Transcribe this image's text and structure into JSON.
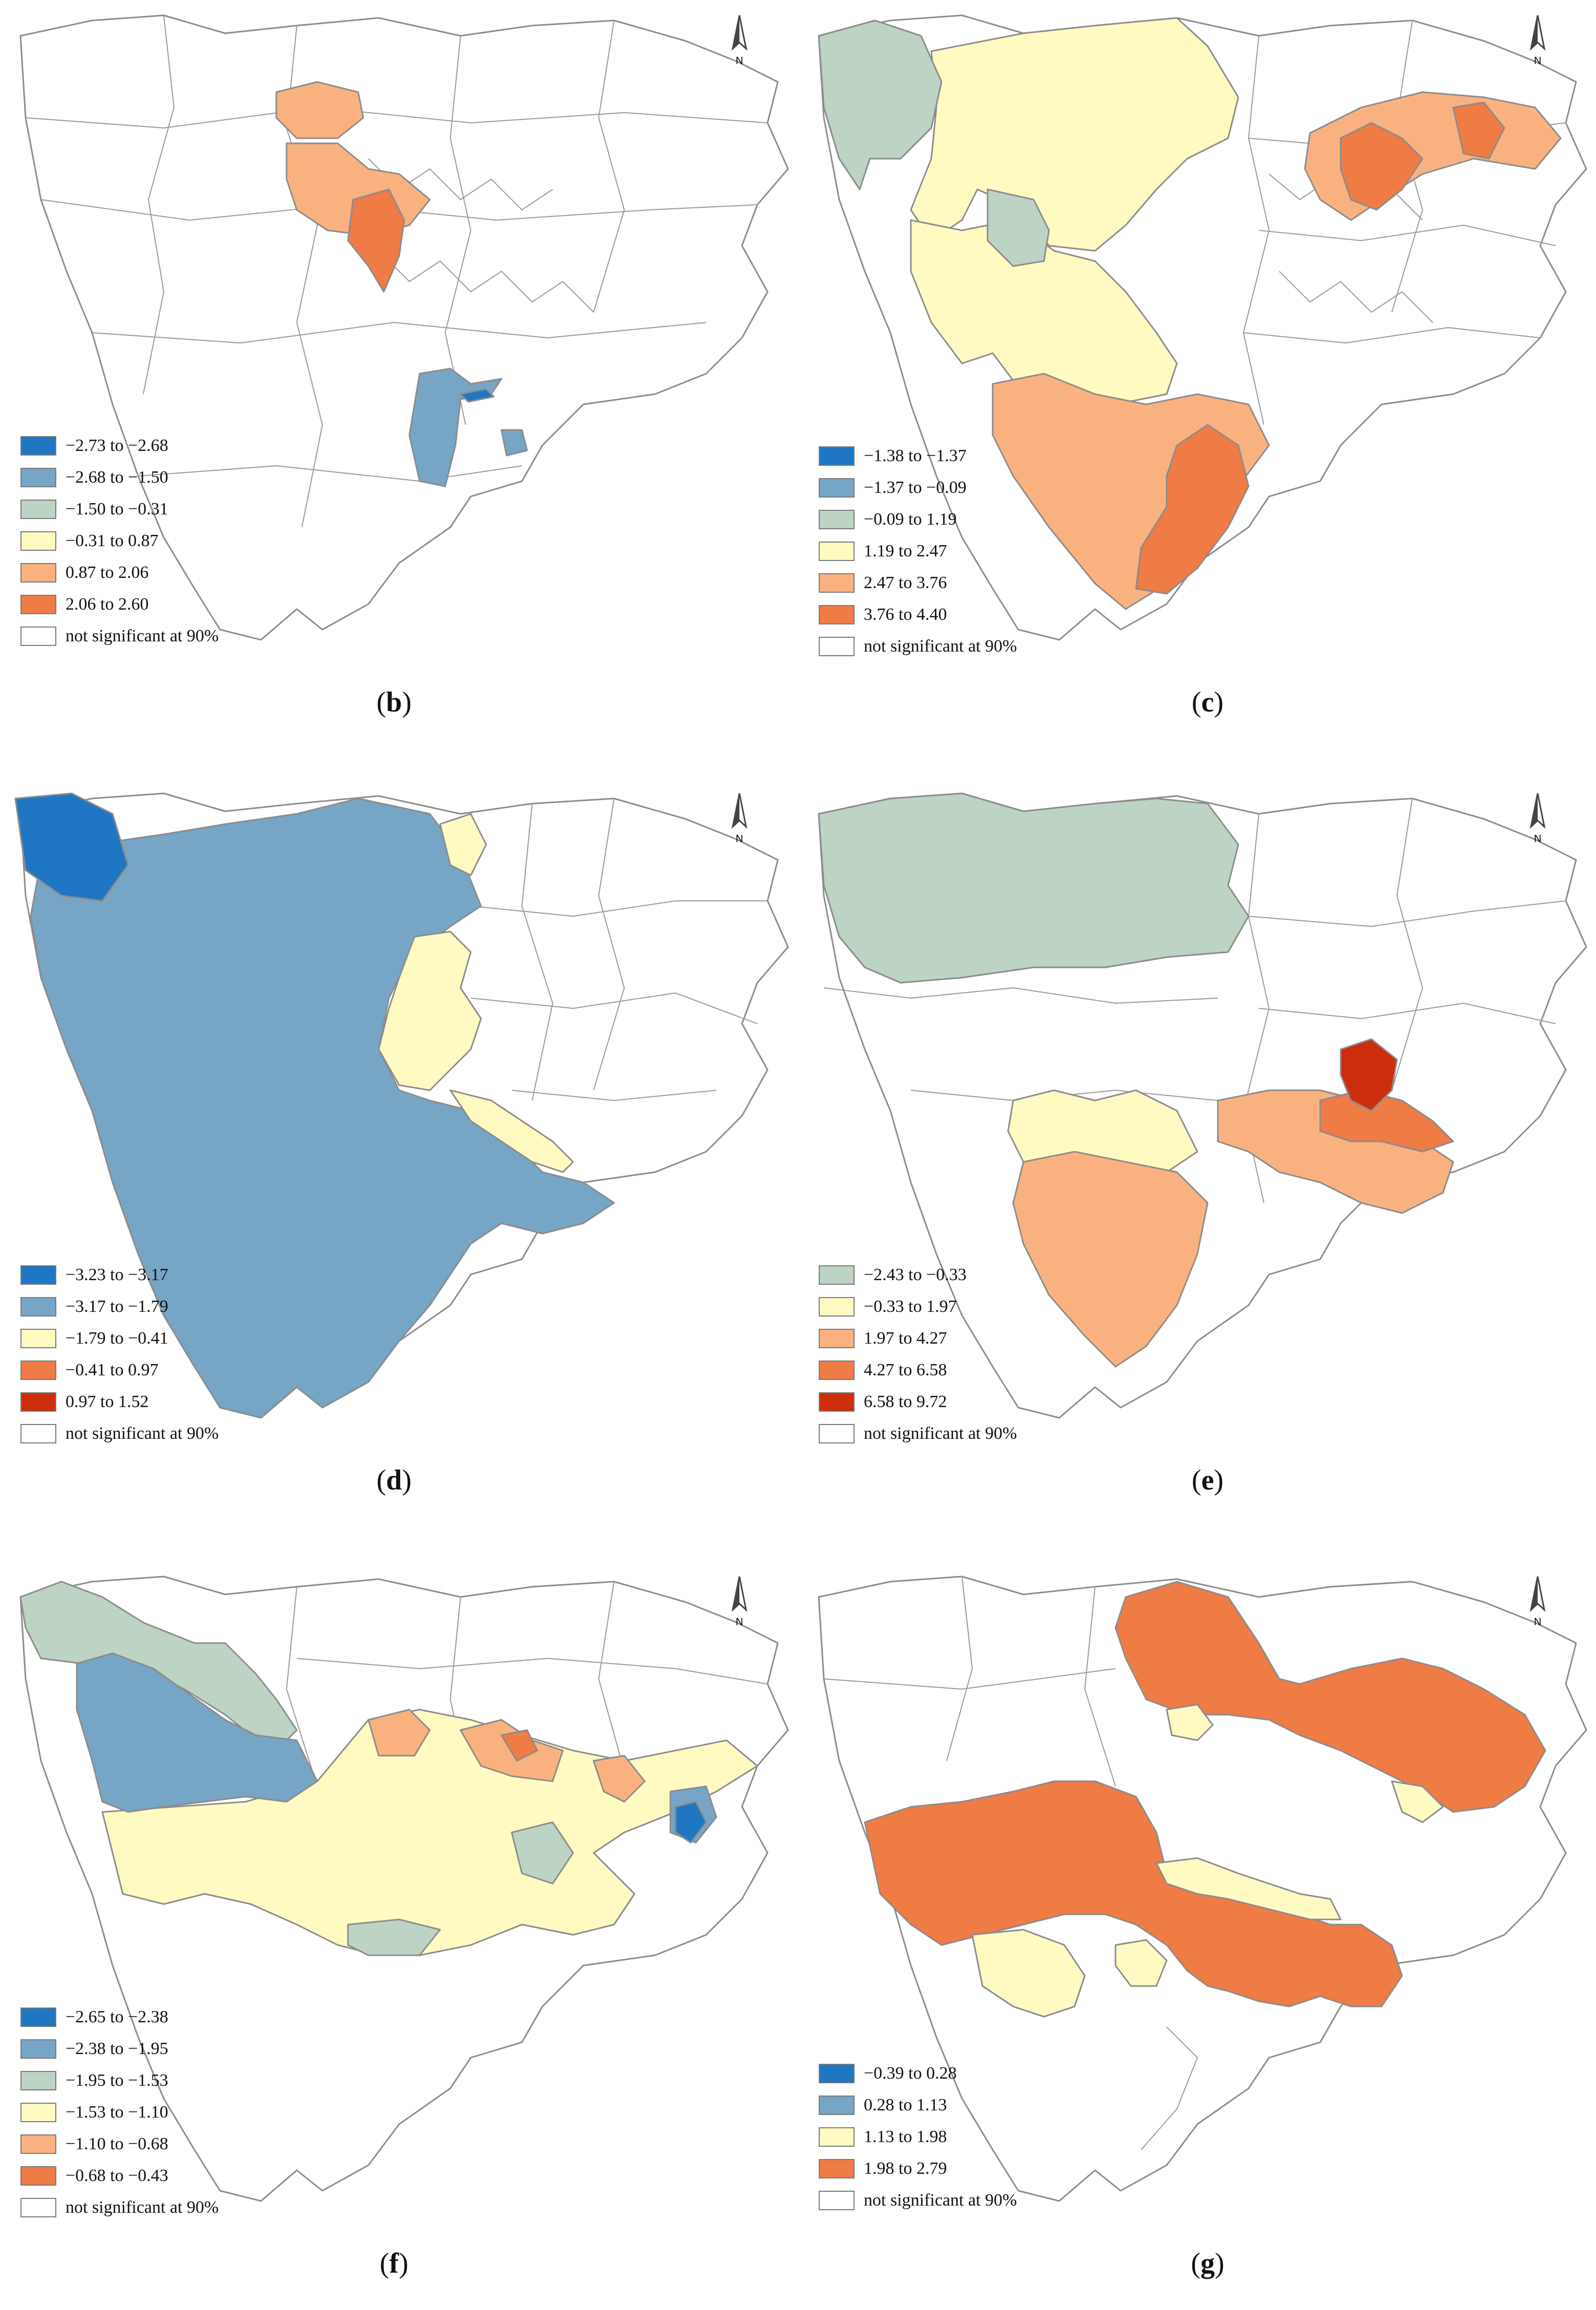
{
  "north_symbol": "N",
  "palette": {
    "deep_blue": "#1f77c4",
    "steel_blue": "#76a5c6",
    "sage": "#bdd3c4",
    "cream": "#fffac2",
    "peach": "#f9b27f",
    "orange": "#ef7b45",
    "red": "#cc2e0d",
    "white": "#ffffff"
  },
  "panels": [
    {
      "label": "b",
      "legend": [
        {
          "text": "−2.73 to −2.68",
          "color": "#1f77c4"
        },
        {
          "text": "−2.68 to −1.50",
          "color": "#76a5c6"
        },
        {
          "text": "−1.50 to −0.31",
          "color": "#bdd3c4"
        },
        {
          "text": "−0.31 to 0.87",
          "color": "#fffac2"
        },
        {
          "text": "0.87 to 2.06",
          "color": "#f9b27f"
        },
        {
          "text": "2.06 to 2.60",
          "color": "#ef7b45"
        },
        {
          "text": "not significant at 90%",
          "color": "#ffffff"
        }
      ]
    },
    {
      "label": "c",
      "legend": [
        {
          "text": "−1.38 to −1.37",
          "color": "#1f77c4"
        },
        {
          "text": "−1.37 to −0.09",
          "color": "#76a5c6"
        },
        {
          "text": "−0.09 to 1.19",
          "color": "#bdd3c4"
        },
        {
          "text": "1.19 to 2.47",
          "color": "#fffac2"
        },
        {
          "text": "2.47 to 3.76",
          "color": "#f9b27f"
        },
        {
          "text": "3.76 to 4.40",
          "color": "#ef7b45"
        },
        {
          "text": "not significant at 90%",
          "color": "#ffffff"
        }
      ]
    },
    {
      "label": "d",
      "legend": [
        {
          "text": "−3.23 to −3.17",
          "color": "#1f77c4"
        },
        {
          "text": "−3.17 to −1.79",
          "color": "#76a5c6"
        },
        {
          "text": "−1.79 to −0.41",
          "color": "#fffac2"
        },
        {
          "text": "−0.41 to 0.97",
          "color": "#ef7b45"
        },
        {
          "text": "0.97 to 1.52",
          "color": "#cc2e0d"
        },
        {
          "text": "not significant at 90%",
          "color": "#ffffff"
        }
      ]
    },
    {
      "label": "e",
      "legend": [
        {
          "text": "−2.43 to −0.33",
          "color": "#bdd3c4"
        },
        {
          "text": "−0.33 to 1.97",
          "color": "#fffac2"
        },
        {
          "text": "1.97 to 4.27",
          "color": "#f9b27f"
        },
        {
          "text": "4.27 to 6.58",
          "color": "#ef7b45"
        },
        {
          "text": "6.58 to 9.72",
          "color": "#cc2e0d"
        },
        {
          "text": "not significant at 90%",
          "color": "#ffffff"
        }
      ]
    },
    {
      "label": "f",
      "legend": [
        {
          "text": "−2.65 to −2.38",
          "color": "#1f77c4"
        },
        {
          "text": "−2.38 to −1.95",
          "color": "#76a5c6"
        },
        {
          "text": "−1.95 to −1.53",
          "color": "#bdd3c4"
        },
        {
          "text": "−1.53 to −1.10",
          "color": "#fffac2"
        },
        {
          "text": "−1.10 to −0.68",
          "color": "#f9b27f"
        },
        {
          "text": "−0.68 to −0.43",
          "color": "#ef7b45"
        },
        {
          "text": "not significant at 90%",
          "color": "#ffffff"
        }
      ]
    },
    {
      "label": "g",
      "legend": [
        {
          "text": "−0.39 to 0.28",
          "color": "#1f77c4"
        },
        {
          "text": "0.28 to 1.13",
          "color": "#76a5c6"
        },
        {
          "text": "1.13 to 1.98",
          "color": "#fffac2"
        },
        {
          "text": "1.98 to 2.79",
          "color": "#ef7b45"
        },
        {
          "text": "not significant at 90%",
          "color": "#ffffff"
        }
      ]
    }
  ]
}
